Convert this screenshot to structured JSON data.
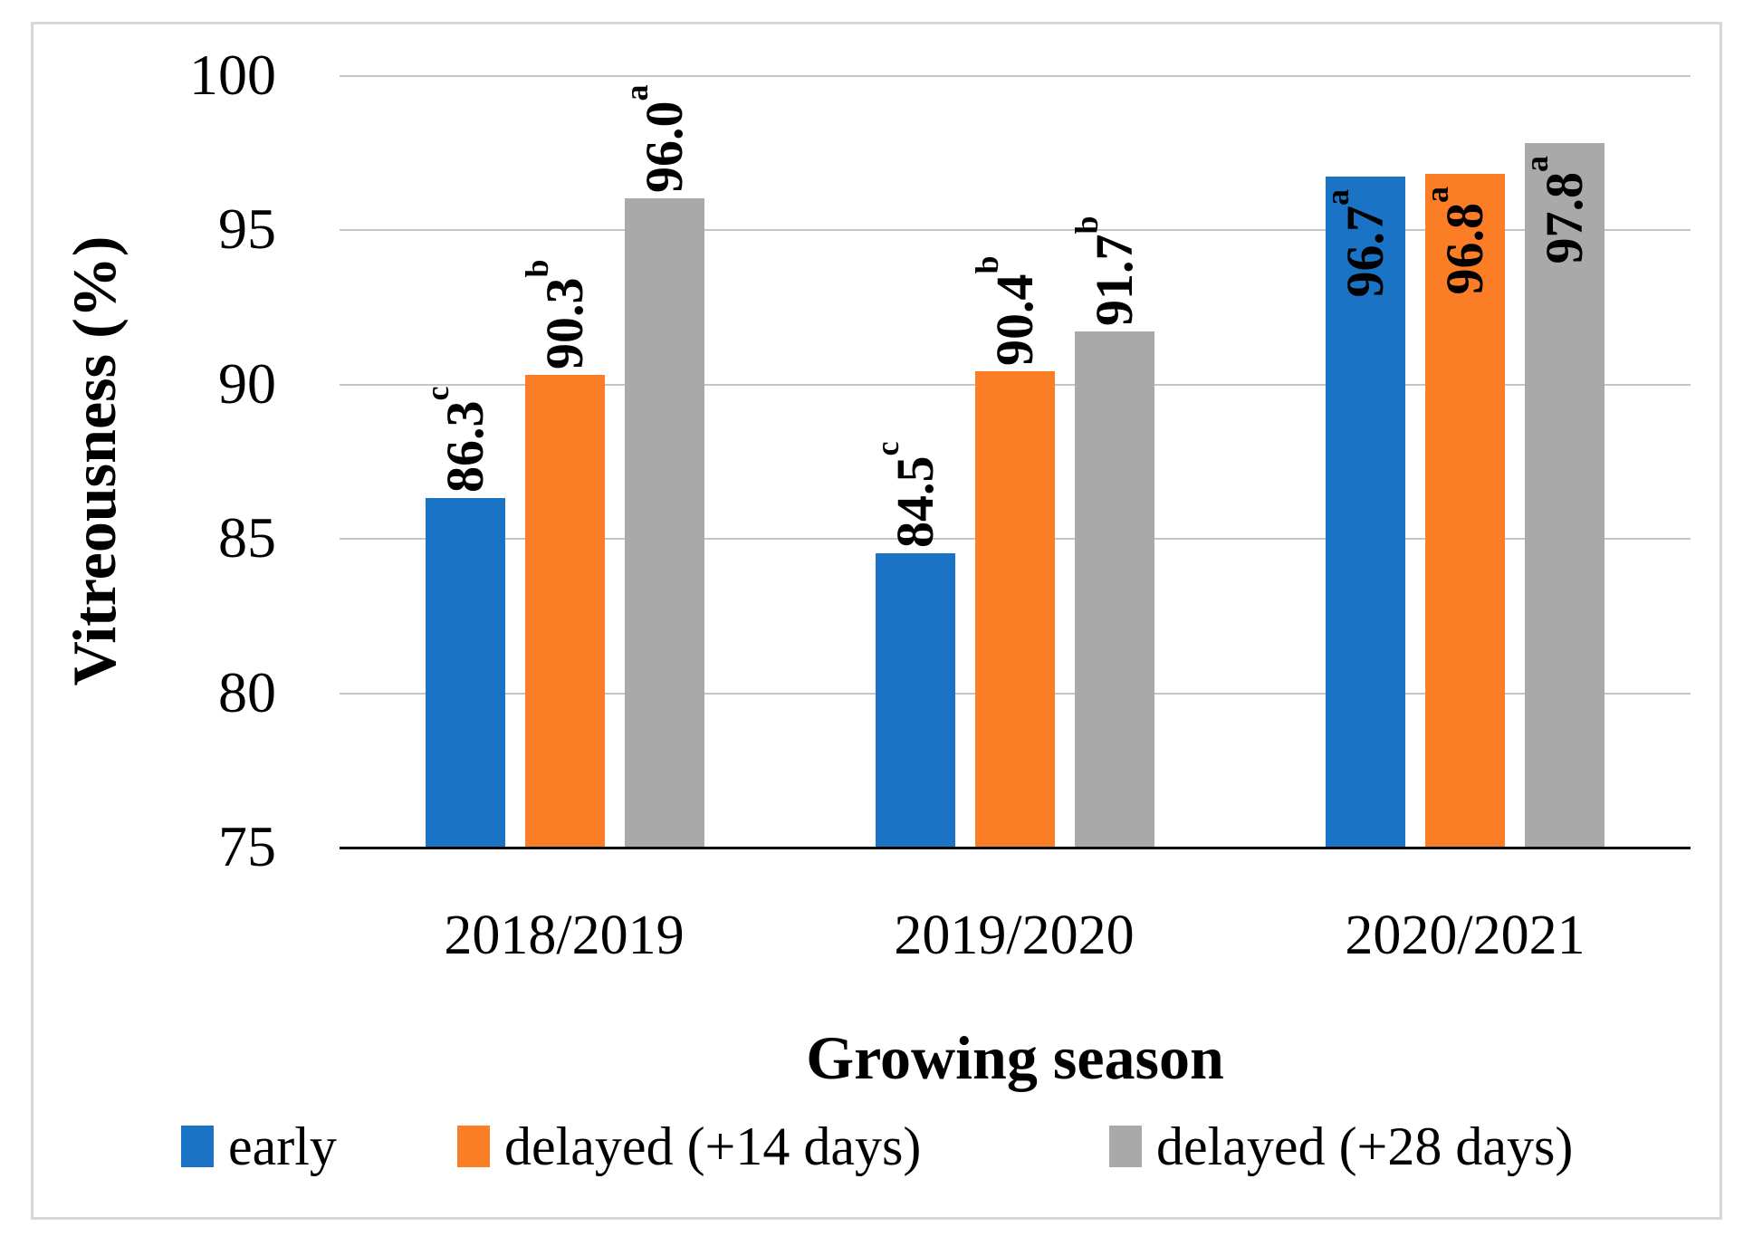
{
  "figure": {
    "background": "#FFFFFF",
    "border_color": "#D8D8D8"
  },
  "chart_data": {
    "type": "bar",
    "title": "",
    "xlabel": "Growing season",
    "ylabel": "Vitreousness (%)",
    "ylim": [
      75,
      100
    ],
    "yticks": [
      100,
      95,
      90,
      85,
      80,
      75
    ],
    "grid": "horizontal",
    "gridline_color": "#C5C5C5",
    "axis_line_color": "#000000",
    "legend_position": "bottom",
    "categories": [
      "2018/2019",
      "2019/2020",
      "2020/2021"
    ],
    "series": [
      {
        "name": "early",
        "color": "#1B73C5",
        "points": [
          {
            "value": 86.3,
            "label": "86.3",
            "sig": "c",
            "label_inside": false
          },
          {
            "value": 84.5,
            "label": "84.5",
            "sig": "c",
            "label_inside": false
          },
          {
            "value": 96.7,
            "label": "96.7",
            "sig": "a",
            "label_inside": true
          }
        ]
      },
      {
        "name": "delayed (+14 days)",
        "color": "#FB7D26",
        "points": [
          {
            "value": 90.3,
            "label": "90.3",
            "sig": "b",
            "label_inside": false
          },
          {
            "value": 90.4,
            "label": "90.4",
            "sig": "b",
            "label_inside": false
          },
          {
            "value": 96.8,
            "label": "96.8",
            "sig": "a",
            "label_inside": true
          }
        ]
      },
      {
        "name": "delayed (+28 days)",
        "color": "#A9A9A9",
        "points": [
          {
            "value": 96.0,
            "label": "96.0",
            "sig": "a",
            "label_inside": false
          },
          {
            "value": 91.7,
            "label": "91.7",
            "sig": "b",
            "label_inside": false
          },
          {
            "value": 97.8,
            "label": "97.8",
            "sig": "a",
            "label_inside": true
          }
        ]
      }
    ]
  }
}
